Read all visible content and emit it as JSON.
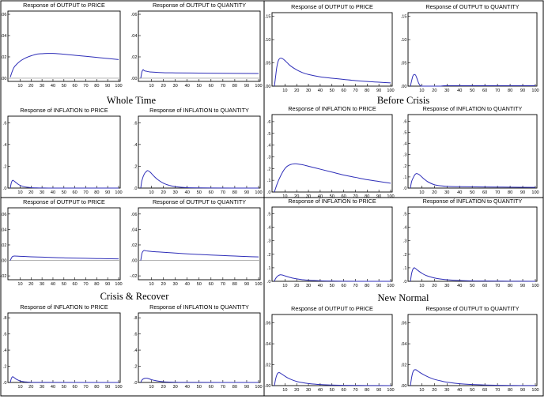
{
  "groups": [
    {
      "label": "Whole Time"
    },
    {
      "label": "Before Crisis"
    },
    {
      "label": "Crisis & Recover"
    },
    {
      "label": "New Normal"
    }
  ],
  "chart_data": [
    {
      "type": "line",
      "group": "Whole Time",
      "title": "Response of OUTPUT to PRICE",
      "xticks": [
        "10",
        "20",
        "30",
        "40",
        "50",
        "60",
        "70",
        "80",
        "90",
        "100"
      ],
      "xlim": [
        1,
        100
      ],
      "yticks": [
        ".00",
        ".02",
        ".04",
        ".06"
      ],
      "ylim": [
        -0.003,
        0.063
      ],
      "zero_line": true,
      "series": [
        {
          "x": [
            1,
            3,
            5,
            10,
            15,
            20,
            25,
            30,
            35,
            40,
            50,
            60,
            70,
            80,
            90,
            100
          ],
          "y": [
            0.001,
            0.007,
            0.011,
            0.016,
            0.019,
            0.021,
            0.0225,
            0.023,
            0.0232,
            0.0232,
            0.0225,
            0.0215,
            0.0205,
            0.0195,
            0.0185,
            0.0175
          ]
        }
      ]
    },
    {
      "type": "line",
      "group": "Whole Time",
      "title": "Response of OUTPUT to QUANTITY",
      "xticks": [
        "10",
        "20",
        "30",
        "40",
        "50",
        "60",
        "70",
        "80",
        "90",
        "100"
      ],
      "xlim": [
        1,
        100
      ],
      "yticks": [
        ".00",
        ".02",
        ".04",
        ".06"
      ],
      "ylim": [
        -0.003,
        0.063
      ],
      "zero_line": true,
      "series": [
        {
          "x": [
            1,
            2,
            3,
            4,
            6,
            8,
            10,
            20,
            30,
            50,
            70,
            100
          ],
          "y": [
            0.0,
            0.006,
            0.008,
            0.007,
            0.0065,
            0.006,
            0.0058,
            0.0052,
            0.005,
            0.0048,
            0.0046,
            0.0044
          ]
        }
      ]
    },
    {
      "type": "line",
      "group": "Whole Time",
      "title": "Response of INFLATION to PRICE",
      "xticks": [
        "10",
        "20",
        "30",
        "40",
        "50",
        "60",
        "70",
        "80",
        "90",
        "100"
      ],
      "xlim": [
        1,
        100
      ],
      "yticks": [
        ".0",
        ".2",
        ".4",
        ".6"
      ],
      "ylim": [
        0,
        0.66
      ],
      "zero_line": false,
      "series": [
        {
          "x": [
            1,
            2,
            3,
            4,
            6,
            8,
            10,
            13,
            16,
            20,
            25,
            30,
            40,
            60,
            100
          ],
          "y": [
            0.0,
            0.05,
            0.07,
            0.068,
            0.052,
            0.037,
            0.025,
            0.014,
            0.008,
            0.004,
            0.002,
            0.001,
            0.0,
            0.0,
            0.0
          ]
        }
      ]
    },
    {
      "type": "line",
      "group": "Whole Time",
      "title": "Response of INFLATION to QUANTITY",
      "xticks": [
        "10",
        "20",
        "30",
        "40",
        "50",
        "60",
        "70",
        "80",
        "90",
        "100"
      ],
      "xlim": [
        1,
        100
      ],
      "yticks": [
        ".0",
        ".2",
        ".4",
        ".6"
      ],
      "ylim": [
        0,
        0.66
      ],
      "zero_line": false,
      "series": [
        {
          "x": [
            1,
            2,
            4,
            6,
            7,
            9,
            12,
            15,
            20,
            25,
            30,
            40,
            60,
            100
          ],
          "y": [
            0.0,
            0.07,
            0.13,
            0.155,
            0.16,
            0.145,
            0.11,
            0.08,
            0.045,
            0.025,
            0.013,
            0.004,
            0.001,
            0.0
          ]
        }
      ]
    },
    {
      "type": "line",
      "group": "Before Crisis",
      "title": "Response of OUTPUT to PRICE",
      "xticks": [
        "10",
        "20",
        "30",
        "40",
        "50",
        "60",
        "70",
        "80",
        "90",
        "100"
      ],
      "xlim": [
        1,
        100
      ],
      "yticks": [
        ".00",
        ".05",
        ".10",
        ".15"
      ],
      "ylim": [
        0,
        0.158
      ],
      "zero_line": false,
      "series": [
        {
          "x": [
            1,
            2,
            3,
            4,
            5,
            6,
            7,
            8,
            10,
            12,
            15,
            20,
            25,
            30,
            40,
            50,
            60,
            70,
            80,
            90,
            100
          ],
          "y": [
            0.0,
            0.02,
            0.04,
            0.052,
            0.058,
            0.06,
            0.06,
            0.059,
            0.055,
            0.05,
            0.043,
            0.035,
            0.029,
            0.025,
            0.02,
            0.017,
            0.0145,
            0.012,
            0.01,
            0.0085,
            0.007
          ]
        }
      ]
    },
    {
      "type": "line",
      "group": "Before Crisis",
      "title": "Response of OUTPUT to QUANTITY",
      "xticks": [
        "10",
        "20",
        "30",
        "40",
        "50",
        "60",
        "70",
        "80",
        "90",
        "100"
      ],
      "xlim": [
        1,
        100
      ],
      "yticks": [
        ".00",
        ".05",
        ".10",
        ".15"
      ],
      "ylim": [
        0,
        0.158
      ],
      "zero_line": false,
      "series": [
        {
          "x": [
            1,
            2,
            3,
            4,
            5,
            6,
            7,
            8,
            9,
            10,
            12,
            20,
            25,
            30,
            50,
            100
          ],
          "y": [
            0.0,
            0.012,
            0.022,
            0.025,
            0.024,
            0.018,
            0.01,
            0.004,
            0.001,
            0.0,
            0.0,
            0.0,
            0.0,
            0.001,
            0.001,
            0.001
          ]
        }
      ]
    },
    {
      "type": "line",
      "group": "Before Crisis",
      "title": "Response of INFLATION to PRICE",
      "xticks": [
        "10",
        "20",
        "30",
        "40",
        "50",
        "60",
        "70",
        "80",
        "90",
        "100"
      ],
      "xlim": [
        1,
        100
      ],
      "yticks": [
        ".0",
        ".1",
        ".2",
        ".3",
        ".4",
        ".5",
        ".6"
      ],
      "ylim": [
        0,
        0.66
      ],
      "zero_line": false,
      "series": [
        {
          "x": [
            1,
            3,
            5,
            8,
            10,
            12,
            15,
            18,
            20,
            25,
            30,
            40,
            50,
            60,
            70,
            80,
            90,
            100
          ],
          "y": [
            0.0,
            0.06,
            0.11,
            0.17,
            0.2,
            0.22,
            0.235,
            0.24,
            0.24,
            0.232,
            0.22,
            0.195,
            0.17,
            0.145,
            0.125,
            0.105,
            0.09,
            0.075
          ]
        }
      ]
    },
    {
      "type": "line",
      "group": "Before Crisis",
      "title": "Response of INFLATION to QUANTITY",
      "xticks": [
        "10",
        "20",
        "30",
        "40",
        "50",
        "60",
        "70",
        "80",
        "90",
        "100"
      ],
      "xlim": [
        1,
        100
      ],
      "yticks": [
        ".0",
        ".1",
        ".2",
        ".3",
        ".4",
        ".5",
        ".6"
      ],
      "ylim": [
        0,
        0.66
      ],
      "zero_line": false,
      "series": [
        {
          "x": [
            1,
            2,
            4,
            5,
            6,
            8,
            10,
            12,
            15,
            20,
            25,
            30,
            40,
            60,
            80,
            100
          ],
          "y": [
            0.0,
            0.06,
            0.11,
            0.125,
            0.13,
            0.12,
            0.1,
            0.08,
            0.055,
            0.03,
            0.02,
            0.015,
            0.012,
            0.01,
            0.008,
            0.006
          ]
        }
      ]
    },
    {
      "type": "line",
      "group": "Crisis & Recover",
      "title": "Response of OUTPUT to PRICE",
      "xticks": [
        "10",
        "20",
        "30",
        "40",
        "50",
        "60",
        "70",
        "80",
        "90",
        "100"
      ],
      "xlim": [
        1,
        100
      ],
      "yticks": [
        "-.02",
        ".00",
        ".02",
        ".04",
        ".06"
      ],
      "ylim": [
        -0.025,
        0.068
      ],
      "zero_line": true,
      "series": [
        {
          "x": [
            1,
            2,
            3,
            4,
            5,
            7,
            10,
            15,
            20,
            30,
            40,
            50,
            60,
            70,
            80,
            90,
            100
          ],
          "y": [
            0.0,
            0.003,
            0.005,
            0.0055,
            0.0056,
            0.0055,
            0.0053,
            0.005,
            0.0047,
            0.0042,
            0.0037,
            0.0033,
            0.003,
            0.0027,
            0.0024,
            0.0021,
            0.0019
          ]
        }
      ]
    },
    {
      "type": "line",
      "group": "Crisis & Recover",
      "title": "Response of OUTPUT to QUANTITY",
      "xticks": [
        "10",
        "20",
        "30",
        "40",
        "50",
        "60",
        "70",
        "80",
        "90",
        "100"
      ],
      "xlim": [
        1,
        100
      ],
      "yticks": [
        "-.02",
        ".00",
        ".02",
        ".04",
        ".06"
      ],
      "ylim": [
        -0.025,
        0.068
      ],
      "zero_line": true,
      "series": [
        {
          "x": [
            1,
            2,
            3,
            4,
            5,
            7,
            10,
            15,
            20,
            30,
            40,
            50,
            60,
            70,
            80,
            90,
            100
          ],
          "y": [
            0.0,
            0.009,
            0.012,
            0.013,
            0.0125,
            0.012,
            0.0115,
            0.011,
            0.0105,
            0.0095,
            0.0085,
            0.0077,
            0.007,
            0.0063,
            0.0056,
            0.005,
            0.0045
          ]
        }
      ]
    },
    {
      "type": "line",
      "group": "Crisis & Recover",
      "title": "Response of INFLATION to PRICE",
      "xticks": [
        "10",
        "20",
        "30",
        "40",
        "50",
        "60",
        "70",
        "80",
        "90",
        "100"
      ],
      "xlim": [
        1,
        100
      ],
      "yticks": [
        ".0",
        ".2",
        ".4",
        ".6",
        ".8"
      ],
      "ylim": [
        0,
        0.86
      ],
      "zero_line": false,
      "series": [
        {
          "x": [
            1,
            2,
            3,
            4,
            6,
            8,
            10,
            13,
            16,
            20,
            30,
            100
          ],
          "y": [
            0.0,
            0.05,
            0.07,
            0.065,
            0.045,
            0.03,
            0.018,
            0.01,
            0.006,
            0.003,
            0.001,
            0.0
          ]
        }
      ]
    },
    {
      "type": "line",
      "group": "Crisis & Recover",
      "title": "Response of INFLATION to QUANTITY",
      "xticks": [
        "10",
        "20",
        "30",
        "40",
        "50",
        "60",
        "70",
        "80",
        "90",
        "100"
      ],
      "xlim": [
        1,
        100
      ],
      "yticks": [
        ".0",
        ".2",
        ".4",
        ".6",
        ".8"
      ],
      "ylim": [
        0,
        0.86
      ],
      "zero_line": false,
      "series": [
        {
          "x": [
            1,
            2,
            4,
            6,
            8,
            10,
            13,
            16,
            20,
            25,
            30,
            40,
            100
          ],
          "y": [
            0.0,
            0.03,
            0.05,
            0.052,
            0.045,
            0.035,
            0.024,
            0.016,
            0.009,
            0.005,
            0.003,
            0.001,
            0.0
          ]
        }
      ]
    },
    {
      "type": "line",
      "group": "New Normal",
      "title": "Response of INFLATION to PRICE",
      "xticks": [
        "10",
        "20",
        "30",
        "40",
        "50",
        "60",
        "70",
        "80",
        "90",
        "100"
      ],
      "xlim": [
        1,
        100
      ],
      "yticks": [
        ".0",
        ".1",
        ".2",
        ".3",
        ".4",
        ".5"
      ],
      "ylim": [
        0,
        0.55
      ],
      "zero_line": false,
      "series": [
        {
          "x": [
            1,
            2,
            4,
            6,
            8,
            10,
            13,
            16,
            20,
            25,
            30,
            40,
            50,
            60,
            80,
            100
          ],
          "y": [
            0.0,
            0.02,
            0.04,
            0.048,
            0.046,
            0.04,
            0.032,
            0.025,
            0.018,
            0.012,
            0.008,
            0.004,
            0.002,
            0.001,
            0.0,
            0.0
          ]
        }
      ]
    },
    {
      "type": "line",
      "group": "New Normal",
      "title": "Response of INFLATION to QUANTITY",
      "xticks": [
        "10",
        "20",
        "30",
        "40",
        "50",
        "60",
        "70",
        "80",
        "90",
        "100"
      ],
      "xlim": [
        1,
        100
      ],
      "yticks": [
        ".0",
        ".1",
        ".2",
        ".3",
        ".4",
        ".5"
      ],
      "ylim": [
        0,
        0.55
      ],
      "zero_line": false,
      "series": [
        {
          "x": [
            1,
            2,
            3,
            4,
            5,
            7,
            10,
            13,
            16,
            20,
            25,
            30,
            40,
            50,
            60,
            80,
            100
          ],
          "y": [
            0.0,
            0.06,
            0.09,
            0.1,
            0.095,
            0.08,
            0.06,
            0.045,
            0.035,
            0.025,
            0.017,
            0.012,
            0.006,
            0.003,
            0.002,
            0.001,
            0.0
          ]
        }
      ]
    },
    {
      "type": "line",
      "group": "New Normal",
      "title": "Response of OUTPUT to PRICE",
      "xticks": [
        "10",
        "20",
        "30",
        "40",
        "50",
        "60",
        "70",
        "80",
        "90",
        "100"
      ],
      "xlim": [
        1,
        100
      ],
      "yticks": [
        ".00",
        ".02",
        ".04",
        ".06"
      ],
      "ylim": [
        0,
        0.068
      ],
      "zero_line": false,
      "series": [
        {
          "x": [
            1,
            2,
            3,
            4,
            5,
            6,
            8,
            10,
            13,
            16,
            20,
            25,
            30,
            40,
            50,
            60,
            80,
            100
          ],
          "y": [
            0.0,
            0.006,
            0.01,
            0.012,
            0.0125,
            0.012,
            0.0105,
            0.009,
            0.007,
            0.0055,
            0.004,
            0.0028,
            0.002,
            0.001,
            0.0006,
            0.0003,
            0.0001,
            0.0
          ]
        }
      ]
    },
    {
      "type": "line",
      "group": "New Normal",
      "title": "Response of OUTPUT to QUANTITY",
      "xticks": [
        "10",
        "20",
        "30",
        "40",
        "50",
        "60",
        "70",
        "80",
        "90",
        "100"
      ],
      "xlim": [
        1,
        100
      ],
      "yticks": [
        ".00",
        ".02",
        ".04",
        ".06"
      ],
      "ylim": [
        0,
        0.068
      ],
      "zero_line": false,
      "series": [
        {
          "x": [
            1,
            2,
            3,
            4,
            5,
            6,
            8,
            10,
            13,
            16,
            20,
            25,
            30,
            40,
            50,
            60,
            80,
            100
          ],
          "y": [
            0.0,
            0.008,
            0.013,
            0.015,
            0.0152,
            0.0148,
            0.013,
            0.0115,
            0.0095,
            0.0078,
            0.006,
            0.0045,
            0.0033,
            0.0018,
            0.001,
            0.0006,
            0.0002,
            0.0001
          ]
        }
      ]
    }
  ]
}
